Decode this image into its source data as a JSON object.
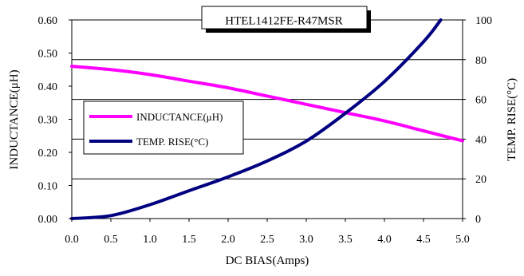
{
  "chart_data": {
    "type": "line",
    "title": "HTEL1412FE-R47MSR",
    "xlabel": "DC BIAS(Amps)",
    "ylabel_left": "INDUCTANCE(μH)",
    "ylabel_right": "TEMP. RISE(°C)",
    "xlim": [
      0,
      5
    ],
    "ylim_left": [
      0,
      0.6
    ],
    "ylim_right": [
      0,
      100
    ],
    "x_ticks": [
      "0.0",
      "0.5",
      "1.0",
      "1.5",
      "2.0",
      "2.5",
      "3.0",
      "3.5",
      "4.0",
      "4.5",
      "5.0"
    ],
    "y_left_ticks": [
      "0.00",
      "0.10",
      "0.20",
      "0.30",
      "0.40",
      "0.50",
      "0.60"
    ],
    "y_right_ticks": [
      "0",
      "20",
      "40",
      "60",
      "80",
      "100"
    ],
    "grid": "horizontal",
    "legend_position": "middle-left",
    "series": [
      {
        "name": "INDUCTANCE(μH)",
        "axis": "left",
        "color": "#ff00ff",
        "x": [
          0,
          0.5,
          1.0,
          1.5,
          2.0,
          2.5,
          3.0,
          3.5,
          4.0,
          4.5,
          5.0
        ],
        "y": [
          0.46,
          0.45,
          0.435,
          0.415,
          0.395,
          0.37,
          0.345,
          0.32,
          0.295,
          0.265,
          0.235
        ]
      },
      {
        "name": "TEMP. RISE(°C)",
        "axis": "right",
        "color": "#000080",
        "x": [
          0,
          0.5,
          1.0,
          1.5,
          2.0,
          2.5,
          3.0,
          3.5,
          4.0,
          4.5,
          4.72
        ],
        "y": [
          0,
          1.5,
          7,
          14,
          21,
          29,
          39,
          53,
          69,
          89,
          100
        ]
      }
    ]
  }
}
